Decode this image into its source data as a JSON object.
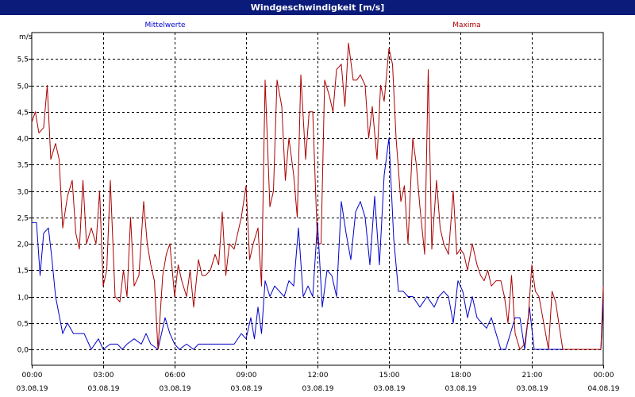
{
  "window": {
    "title": "Windgeschwindigkeit [m/s]"
  },
  "chart_data": {
    "type": "line",
    "title": "Windgeschwindigkeit [m/s]",
    "ylabel": "m/s",
    "ylim": [
      -0.3,
      6.0
    ],
    "xlim": [
      0,
      24
    ],
    "grid": true,
    "legend_placement": "top",
    "yticks": [
      "0,0",
      "0,5",
      "1,0",
      "1,5",
      "2,0",
      "2,5",
      "3,0",
      "3,5",
      "4,0",
      "4,5",
      "5,0",
      "5,5"
    ],
    "ytick_values": [
      0,
      0.5,
      1,
      1.5,
      2,
      2.5,
      3,
      3.5,
      4,
      4.5,
      5,
      5.5
    ],
    "xticks": [
      {
        "time": "00:00",
        "date": "03.08.19"
      },
      {
        "time": "03:00",
        "date": "03.08.19"
      },
      {
        "time": "06:00",
        "date": "03.08.19"
      },
      {
        "time": "09:00",
        "date": "03.08.19"
      },
      {
        "time": "12:00",
        "date": "03.08.19"
      },
      {
        "time": "15:00",
        "date": "03.08.19"
      },
      {
        "time": "18:00",
        "date": "03.08.19"
      },
      {
        "time": "21:00",
        "date": "03.08.19"
      },
      {
        "time": "00:00",
        "date": "04.08.19"
      }
    ],
    "xtick_hours": [
      0,
      3,
      6,
      9,
      12,
      15,
      18,
      21,
      24
    ],
    "series": [
      {
        "name": "Mittelwerte",
        "color": "#0000cc",
        "x": [
          0,
          0.2,
          0.35,
          0.5,
          0.7,
          0.85,
          1.0,
          1.3,
          1.5,
          1.75,
          2.0,
          2.2,
          2.5,
          2.8,
          3.0,
          3.3,
          3.6,
          3.8,
          4.0,
          4.3,
          4.6,
          4.8,
          5.0,
          5.3,
          5.6,
          5.8,
          6.0,
          6.2,
          6.5,
          6.8,
          7.0,
          7.5,
          8.0,
          8.5,
          8.8,
          9.0,
          9.2,
          9.35,
          9.5,
          9.65,
          9.8,
          10.0,
          10.2,
          10.4,
          10.6,
          10.8,
          11.0,
          11.2,
          11.4,
          11.6,
          11.8,
          12.0,
          12.2,
          12.4,
          12.6,
          12.8,
          13.0,
          13.2,
          13.4,
          13.6,
          13.8,
          14.0,
          14.2,
          14.4,
          14.6,
          14.8,
          15.0,
          15.2,
          15.4,
          15.6,
          15.8,
          16.0,
          16.3,
          16.6,
          16.9,
          17.1,
          17.3,
          17.5,
          17.7,
          17.9,
          18.1,
          18.3,
          18.5,
          18.7,
          18.9,
          19.1,
          19.3,
          19.5,
          19.7,
          19.9,
          20.1,
          20.3,
          20.5,
          20.7,
          20.9,
          21.1,
          21.3,
          21.5,
          21.7,
          21.9,
          22.1,
          22.3,
          22.5,
          22.7,
          23.0,
          23.5,
          23.9,
          24.0
        ],
        "values": [
          2.4,
          2.4,
          1.4,
          2.2,
          2.3,
          1.7,
          1.0,
          0.3,
          0.5,
          0.3,
          0.3,
          0.3,
          0.0,
          0.2,
          0.0,
          0.1,
          0.1,
          0.0,
          0.1,
          0.2,
          0.1,
          0.3,
          0.1,
          0.0,
          0.6,
          0.3,
          0.1,
          0.0,
          0.1,
          0.0,
          0.1,
          0.1,
          0.1,
          0.1,
          0.3,
          0.2,
          0.6,
          0.2,
          0.8,
          0.3,
          1.3,
          1.0,
          1.2,
          1.1,
          1.0,
          1.3,
          1.2,
          2.3,
          1.0,
          1.2,
          1.0,
          2.4,
          0.8,
          1.5,
          1.4,
          1.0,
          2.8,
          2.2,
          1.7,
          2.6,
          2.8,
          2.5,
          1.6,
          2.9,
          1.6,
          3.3,
          4.0,
          2.1,
          1.1,
          1.1,
          1.0,
          1.0,
          0.8,
          1.0,
          0.8,
          1.0,
          1.1,
          1.0,
          0.5,
          1.3,
          1.1,
          0.6,
          1.0,
          0.6,
          0.5,
          0.4,
          0.6,
          0.3,
          0.0,
          0.0,
          0.3,
          0.6,
          0.6,
          0.0,
          0.8,
          0.0,
          0.0,
          0.0,
          0.0,
          0.0,
          0.0,
          0.0,
          0.0,
          0.0,
          0.0,
          0.0,
          0.0,
          0.9
        ]
      },
      {
        "name": "Maxima",
        "color": "#aa0000",
        "x": [
          0,
          0.15,
          0.3,
          0.5,
          0.65,
          0.8,
          1.0,
          1.15,
          1.3,
          1.5,
          1.7,
          1.85,
          2.0,
          2.15,
          2.3,
          2.5,
          2.7,
          2.85,
          3.0,
          3.15,
          3.3,
          3.5,
          3.7,
          3.85,
          4.0,
          4.15,
          4.3,
          4.5,
          4.7,
          4.85,
          5.0,
          5.15,
          5.3,
          5.5,
          5.65,
          5.8,
          6.0,
          6.15,
          6.3,
          6.5,
          6.65,
          6.8,
          7.0,
          7.15,
          7.3,
          7.5,
          7.7,
          7.85,
          8.0,
          8.15,
          8.3,
          8.5,
          8.65,
          8.8,
          9.0,
          9.15,
          9.3,
          9.5,
          9.65,
          9.8,
          10.0,
          10.15,
          10.3,
          10.5,
          10.65,
          10.8,
          11.0,
          11.15,
          11.3,
          11.5,
          11.65,
          11.8,
          12.0,
          12.15,
          12.3,
          12.5,
          12.65,
          12.8,
          13.0,
          13.15,
          13.3,
          13.5,
          13.65,
          13.8,
          14.0,
          14.15,
          14.3,
          14.5,
          14.65,
          14.8,
          15.0,
          15.15,
          15.3,
          15.5,
          15.65,
          15.8,
          16.0,
          16.15,
          16.3,
          16.5,
          16.65,
          16.8,
          17.0,
          17.15,
          17.3,
          17.5,
          17.7,
          17.85,
          18.0,
          18.15,
          18.3,
          18.5,
          18.7,
          18.85,
          19.0,
          19.15,
          19.3,
          19.5,
          19.7,
          19.85,
          20.0,
          20.15,
          20.3,
          20.5,
          20.7,
          20.85,
          21.0,
          21.15,
          21.3,
          21.5,
          21.7,
          21.85,
          22.0,
          22.3,
          22.6,
          23.0,
          23.5,
          23.9,
          24.0
        ],
        "values": [
          4.3,
          4.5,
          4.1,
          4.2,
          5.0,
          3.6,
          3.9,
          3.6,
          2.3,
          2.9,
          3.2,
          2.2,
          1.9,
          3.2,
          2.0,
          2.3,
          2.0,
          3.0,
          1.2,
          1.5,
          3.2,
          1.0,
          0.9,
          1.5,
          1.0,
          2.5,
          1.2,
          1.4,
          2.8,
          2.0,
          1.6,
          1.3,
          0.0,
          1.4,
          1.8,
          2.0,
          1.0,
          1.6,
          1.3,
          1.0,
          1.5,
          0.8,
          1.7,
          1.4,
          1.4,
          1.5,
          1.8,
          1.6,
          2.6,
          1.4,
          2.0,
          1.9,
          2.2,
          2.5,
          3.1,
          1.7,
          2.0,
          2.3,
          1.2,
          5.1,
          2.7,
          3.0,
          5.1,
          4.6,
          3.2,
          4.0,
          3.3,
          2.5,
          5.2,
          3.6,
          4.5,
          4.5,
          2.0,
          2.0,
          5.1,
          4.8,
          4.5,
          5.3,
          5.4,
          4.6,
          5.8,
          5.1,
          5.1,
          5.2,
          5.0,
          4.0,
          4.6,
          3.6,
          5.0,
          4.7,
          5.7,
          5.4,
          4.0,
          2.8,
          3.1,
          2.0,
          4.0,
          3.5,
          2.7,
          1.8,
          5.3,
          1.9,
          3.2,
          2.3,
          2.0,
          1.8,
          3.0,
          1.8,
          1.9,
          1.8,
          1.5,
          2.0,
          1.6,
          1.4,
          1.3,
          1.5,
          1.2,
          1.3,
          1.3,
          1.0,
          0.5,
          1.4,
          0.3,
          0.0,
          0.1,
          0.6,
          1.6,
          1.1,
          1.0,
          0.5,
          0.0,
          1.1,
          0.9,
          0.0,
          0.0,
          0.0,
          0.0,
          0.0,
          1.2
        ]
      }
    ]
  }
}
